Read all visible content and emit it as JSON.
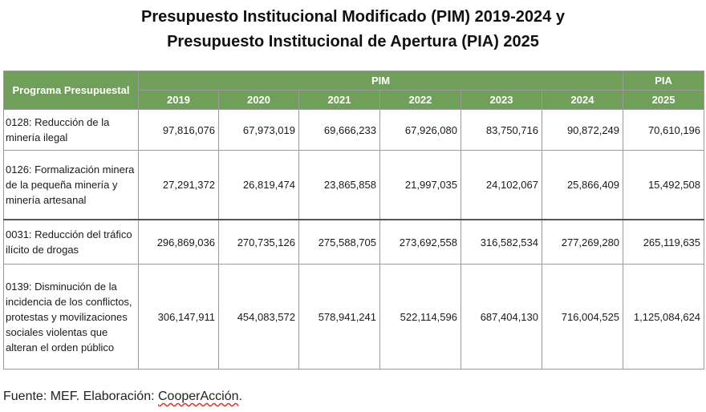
{
  "title": {
    "line1": "Presupuesto Institucional Modificado (PIM) 2019-2024 y",
    "line2": "Presupuesto Institucional de Apertura (PIA) 2025"
  },
  "table": {
    "program_header": "Programa Presupuestal",
    "pim_header": "PIM",
    "pia_header": "PIA",
    "years": [
      "2019",
      "2020",
      "2021",
      "2022",
      "2023",
      "2024",
      "2025"
    ],
    "rows": [
      {
        "program": "0128: Reducción de la minería ilegal",
        "values": [
          "97,816,076",
          "67,973,019",
          "69,666,233",
          "67,926,080",
          "83,750,716",
          "90,872,249",
          "70,610,196"
        ]
      },
      {
        "program": "0126: Formalización minera de la pequeña minería y minería artesanal",
        "values": [
          "27,291,372",
          "26,819,474",
          "23,865,858",
          "21,997,035",
          "24,102,067",
          "25,866,409",
          "15,492,508"
        ]
      },
      {
        "program": "0031: Reducción del tráfico ilícito de drogas",
        "values": [
          "296,869,036",
          "270,735,126",
          "275,588,705",
          "273,692,558",
          "316,582,534",
          "277,269,280",
          "265,119,635"
        ]
      },
      {
        "program": "0139: Disminución de la incidencia de los conflictos, protestas y movilizaciones sociales violentas que alteran el orden público",
        "values": [
          "306,147,911",
          "454,083,572",
          "578,941,241",
          "522,114,596",
          "687,404,130",
          "716,004,525",
          "1,125,084,624"
        ]
      }
    ]
  },
  "source": {
    "prefix": "Fuente: MEF. Elaboración: ",
    "org": "CooperAcción",
    "suffix": "."
  },
  "colors": {
    "header_green": "#6f9f58",
    "header_text": "#ffffff"
  }
}
